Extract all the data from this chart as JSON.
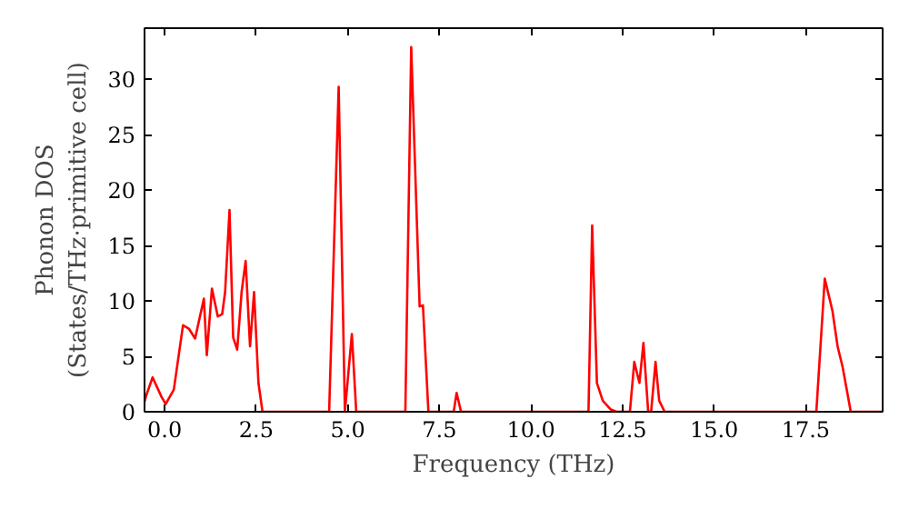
{
  "chart_data": {
    "type": "line",
    "xlabel": "Frequency (THz)",
    "ylabel": "Phonon DOS\n(States/THz·primitive cell)",
    "x": [
      -0.55,
      -0.5,
      -0.33,
      -0.08,
      0.03,
      0.25,
      0.5,
      0.66,
      0.83,
      1.07,
      1.15,
      1.29,
      1.45,
      1.57,
      1.65,
      1.77,
      1.87,
      1.98,
      2.1,
      2.21,
      2.33,
      2.44,
      2.56,
      2.67,
      4.49,
      4.75,
      4.92,
      5.11,
      5.23,
      6.57,
      6.73,
      6.96,
      7.05,
      7.2,
      7.89,
      7.97,
      8.09,
      11.57,
      11.67,
      11.8,
      11.96,
      12.18,
      12.34,
      12.7,
      12.82,
      12.96,
      13.07,
      13.2,
      13.28,
      13.4,
      13.5,
      13.65,
      17.79,
      18.02,
      18.23,
      18.37,
      18.51,
      18.73,
      19.6
    ],
    "series": [
      {
        "color": "#ff0000",
        "values": [
          0.9,
          1.5,
          3.1,
          1.3,
          0.7,
          2.0,
          7.8,
          7.5,
          6.6,
          10.2,
          5.1,
          11.1,
          8.6,
          8.8,
          10.8,
          18.2,
          6.7,
          5.6,
          10.8,
          13.6,
          5.9,
          10.8,
          2.6,
          0,
          0,
          29.3,
          0,
          7.0,
          0,
          0,
          32.9,
          9.5,
          9.6,
          0,
          0,
          1.7,
          0,
          0,
          16.8,
          2.6,
          1.0,
          0.2,
          0,
          0,
          4.5,
          2.6,
          6.2,
          0,
          0,
          4.5,
          1.0,
          0,
          0,
          12.0,
          9.1,
          5.9,
          4.0,
          0,
          0
        ]
      }
    ],
    "xlim": [
      -0.55,
      19.6
    ],
    "ylim": [
      0,
      34.6
    ],
    "xticks": [
      {
        "value": 0,
        "label": "0.0"
      },
      {
        "value": 2.5,
        "label": "2.5"
      },
      {
        "value": 5,
        "label": "5.0"
      },
      {
        "value": 7.5,
        "label": "7.5"
      },
      {
        "value": 10,
        "label": "10.0"
      },
      {
        "value": 12.5,
        "label": "12.5"
      },
      {
        "value": 15,
        "label": "15.0"
      },
      {
        "value": 17.5,
        "label": "17.5"
      }
    ],
    "yticks": [
      0,
      5,
      10,
      15,
      20,
      25,
      30
    ],
    "grid": false
  }
}
